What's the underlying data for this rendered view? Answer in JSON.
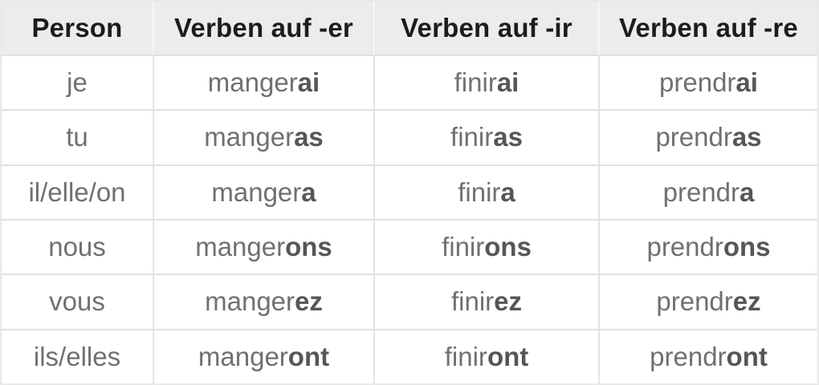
{
  "colors": {
    "header_background": "#ececec",
    "header_text": "#1c1c1c",
    "body_text": "#707070",
    "ending_text": "#565656",
    "grid_border": "#e1e1e1",
    "header_divider": "#f7f7f7"
  },
  "table": {
    "headers": [
      "Person",
      "Verben auf -er",
      "Verben auf -ir",
      "Verben auf -re"
    ],
    "rows": [
      {
        "person": "je",
        "er": {
          "stem": "manger",
          "ending": "ai"
        },
        "ir": {
          "stem": "finir",
          "ending": "ai"
        },
        "re": {
          "stem": "prendr",
          "ending": "ai"
        }
      },
      {
        "person": "tu",
        "er": {
          "stem": "manger",
          "ending": "as"
        },
        "ir": {
          "stem": "finir",
          "ending": "as"
        },
        "re": {
          "stem": "prendr",
          "ending": "as"
        }
      },
      {
        "person": "il/elle/on",
        "er": {
          "stem": "manger",
          "ending": "a"
        },
        "ir": {
          "stem": "finir",
          "ending": "a"
        },
        "re": {
          "stem": "prendr",
          "ending": "a"
        }
      },
      {
        "person": "nous",
        "er": {
          "stem": "manger",
          "ending": "ons"
        },
        "ir": {
          "stem": "finir",
          "ending": "ons"
        },
        "re": {
          "stem": "prendr",
          "ending": "ons"
        }
      },
      {
        "person": "vous",
        "er": {
          "stem": "manger",
          "ending": "ez"
        },
        "ir": {
          "stem": "finir",
          "ending": "ez"
        },
        "re": {
          "stem": "prendr",
          "ending": "ez"
        }
      },
      {
        "person": "ils/elles",
        "er": {
          "stem": "manger",
          "ending": "ont"
        },
        "ir": {
          "stem": "finir",
          "ending": "ont"
        },
        "re": {
          "stem": "prendr",
          "ending": "ont"
        }
      }
    ]
  }
}
